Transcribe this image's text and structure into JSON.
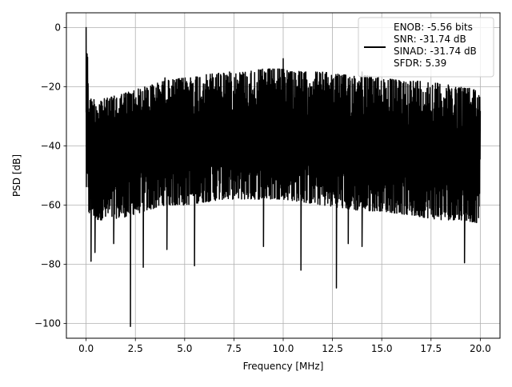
{
  "chart_data": {
    "type": "line",
    "title": "",
    "xlabel": "Frequency [MHz]",
    "ylabel": "PSD [dB]",
    "xlim": [
      -1.0,
      21.0
    ],
    "ylim": [
      -105.0,
      5.0
    ],
    "xticks": [
      0.0,
      2.5,
      5.0,
      7.5,
      10.0,
      12.5,
      15.0,
      17.5,
      20.0
    ],
    "xtick_labels": [
      "0.0",
      "2.5",
      "5.0",
      "7.5",
      "10.0",
      "12.5",
      "15.0",
      "17.5",
      "20.0"
    ],
    "yticks": [
      0,
      -20,
      -40,
      -60,
      -80,
      -100
    ],
    "ytick_labels": [
      "0",
      "−20",
      "−40",
      "−60",
      "−80",
      "−100"
    ],
    "grid": true,
    "legend_position": "top-right",
    "series": [
      {
        "name": "ENOB: -5.56 bits\nSNR: -31.74 dB\nSINAD: -31.74 dB\nSFDR: 5.39",
        "color": "#000000",
        "x": [
          0.0,
          0.05,
          0.1,
          0.2,
          0.5,
          1.0,
          2.0,
          3.0,
          4.0,
          5.0,
          6.0,
          7.0,
          8.0,
          9.0,
          10.0,
          11.0,
          12.0,
          13.0,
          14.0,
          15.0,
          16.0,
          17.0,
          18.0,
          19.0,
          19.9,
          20.0
        ],
        "upper_envelope": [
          -24,
          0,
          -19,
          -24,
          -24,
          -24,
          -22,
          -20,
          -18,
          -17,
          -16,
          -15,
          -15,
          -14,
          -14,
          -15,
          -15,
          -16,
          -16,
          -17,
          -18,
          -18,
          -19,
          -20,
          -21,
          -24
        ],
        "lower_envelope": [
          -55,
          -55,
          -65,
          -62,
          -65,
          -65,
          -64,
          -62,
          -60,
          -60,
          -59,
          -58,
          -58,
          -58,
          -58,
          -59,
          -60,
          -61,
          -62,
          -62,
          -63,
          -64,
          -65,
          -65,
          -66,
          -54
        ],
        "peaks": [
          {
            "x": 0.0,
            "y": 0.0
          },
          {
            "x": 0.1,
            "y": -19.0
          },
          {
            "x": 4.0,
            "y": -17.0
          },
          {
            "x": 10.0,
            "y": -10.5
          },
          {
            "x": 14.0,
            "y": -15.0
          }
        ],
        "dips": [
          {
            "x": 0.25,
            "y": -79.0
          },
          {
            "x": 0.45,
            "y": -76.0
          },
          {
            "x": 1.4,
            "y": -73.0
          },
          {
            "x": 2.25,
            "y": -101.0
          },
          {
            "x": 2.9,
            "y": -81.0
          },
          {
            "x": 4.1,
            "y": -75.0
          },
          {
            "x": 5.5,
            "y": -80.5
          },
          {
            "x": 9.0,
            "y": -74.0
          },
          {
            "x": 10.9,
            "y": -82.0
          },
          {
            "x": 12.7,
            "y": -88.0
          },
          {
            "x": 13.3,
            "y": -73.0
          },
          {
            "x": 14.0,
            "y": -74.0
          },
          {
            "x": 19.2,
            "y": -79.5
          }
        ]
      }
    ]
  }
}
